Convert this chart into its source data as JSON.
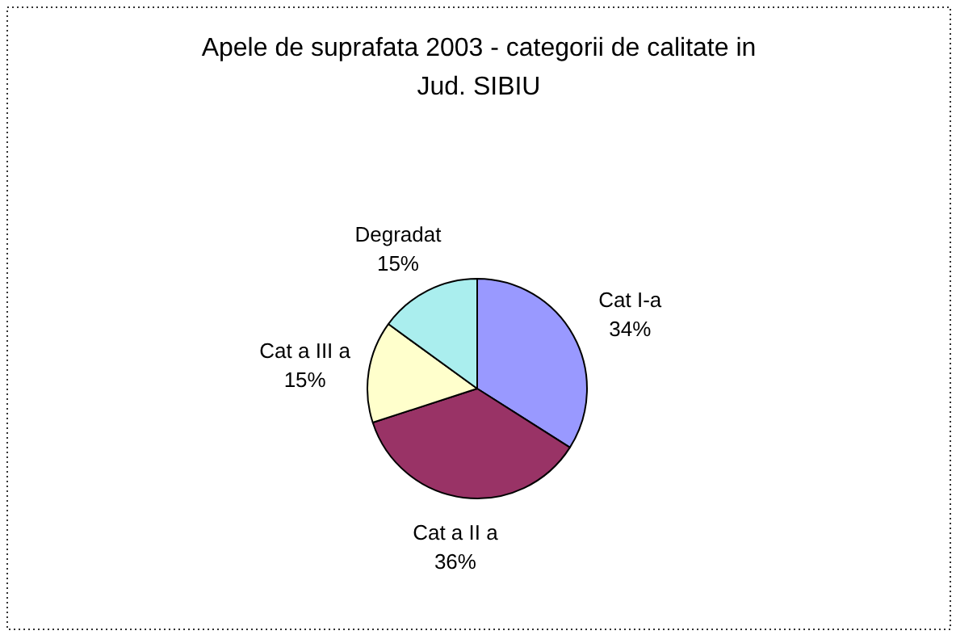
{
  "chart_data": {
    "type": "pie",
    "title": "Apele de suprafata 2003 - categorii de calitate in Jud. SIBIU",
    "categories": [
      "Cat I-a",
      "Cat a II a",
      "Cat a III a",
      "Degradat"
    ],
    "values": [
      34,
      36,
      15,
      15
    ],
    "colors": [
      "#9999ff",
      "#993366",
      "#ffffcc",
      "#aaeeee"
    ],
    "value_labels": [
      "34%",
      "36%",
      "15%",
      "15%"
    ]
  }
}
